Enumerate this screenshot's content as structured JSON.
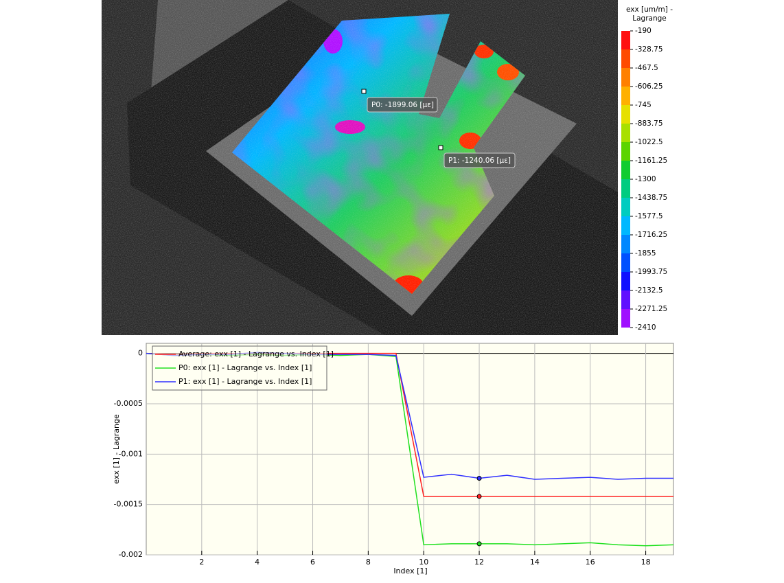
{
  "image": {
    "points": [
      {
        "label": "P0: -1899.06 [µε]"
      },
      {
        "label": "P1: -1240.06 [µε]"
      }
    ]
  },
  "colorbar": {
    "title_lines": [
      "exx [um/m] -",
      "Lagrange"
    ],
    "ticks": [
      -190,
      -328.75,
      -467.5,
      -606.25,
      -745,
      -883.75,
      -1022.5,
      -1161.25,
      -1300,
      -1438.75,
      -1577.5,
      -1716.25,
      -1855,
      -1993.75,
      -2132.5,
      -2271.25,
      -2410
    ],
    "colors": [
      "#ff1010",
      "#ff4a00",
      "#ff8000",
      "#ffb000",
      "#e6e000",
      "#a8e000",
      "#5cd400",
      "#10cc30",
      "#00cc80",
      "#00ccc0",
      "#00b8ff",
      "#0088ff",
      "#0050ff",
      "#1010ff",
      "#6010ff",
      "#a010ff"
    ]
  },
  "chart_data": {
    "type": "line",
    "xlabel": "Index [1]",
    "ylabel": "exx [1] - Lagrange",
    "x": [
      0,
      1,
      2,
      3,
      4,
      5,
      6,
      7,
      8,
      9,
      10,
      11,
      12,
      13,
      14,
      15,
      16,
      17,
      18,
      19
    ],
    "xlim": [
      0,
      19
    ],
    "xticks": [
      2,
      4,
      6,
      8,
      10,
      12,
      14,
      16,
      18
    ],
    "ylim": [
      -0.002,
      0.0001
    ],
    "yticks": [
      0,
      -0.0005,
      -0.001,
      -0.0015,
      -0.002
    ],
    "grid": true,
    "highlight_x": 12,
    "series": [
      {
        "name": "Average: exx [1] - Lagrange vs. Index [1]",
        "color": "#ff2020",
        "values": [
          0,
          -1e-05,
          0,
          0,
          -1e-05,
          0,
          0,
          0,
          0,
          0,
          -0.00142,
          -0.00142,
          -0.00142,
          -0.00142,
          -0.00142,
          -0.00142,
          -0.00142,
          -0.00142,
          -0.00142,
          -0.00142
        ]
      },
      {
        "name": "P0: exx [1] - Lagrange vs. Index [1]",
        "color": "#20e020",
        "values": [
          0,
          -2e-05,
          -1e-05,
          -2e-05,
          -1e-05,
          -2e-05,
          -1e-05,
          -2e-05,
          -1e-05,
          -3e-05,
          -0.0019,
          -0.00189,
          -0.00189,
          -0.00189,
          -0.0019,
          -0.00189,
          -0.00188,
          -0.0019,
          -0.00191,
          -0.0019
        ]
      },
      {
        "name": "P1: exx [1] - Lagrange vs. Index [1]",
        "color": "#3030ff",
        "values": [
          0,
          -2e-05,
          -1e-05,
          -1e-05,
          1e-05,
          0,
          -1e-05,
          -1e-05,
          -1e-05,
          -2e-05,
          -0.00123,
          -0.0012,
          -0.00124,
          -0.00121,
          -0.00125,
          -0.00124,
          -0.00123,
          -0.00125,
          -0.00124,
          -0.00124
        ]
      }
    ]
  }
}
